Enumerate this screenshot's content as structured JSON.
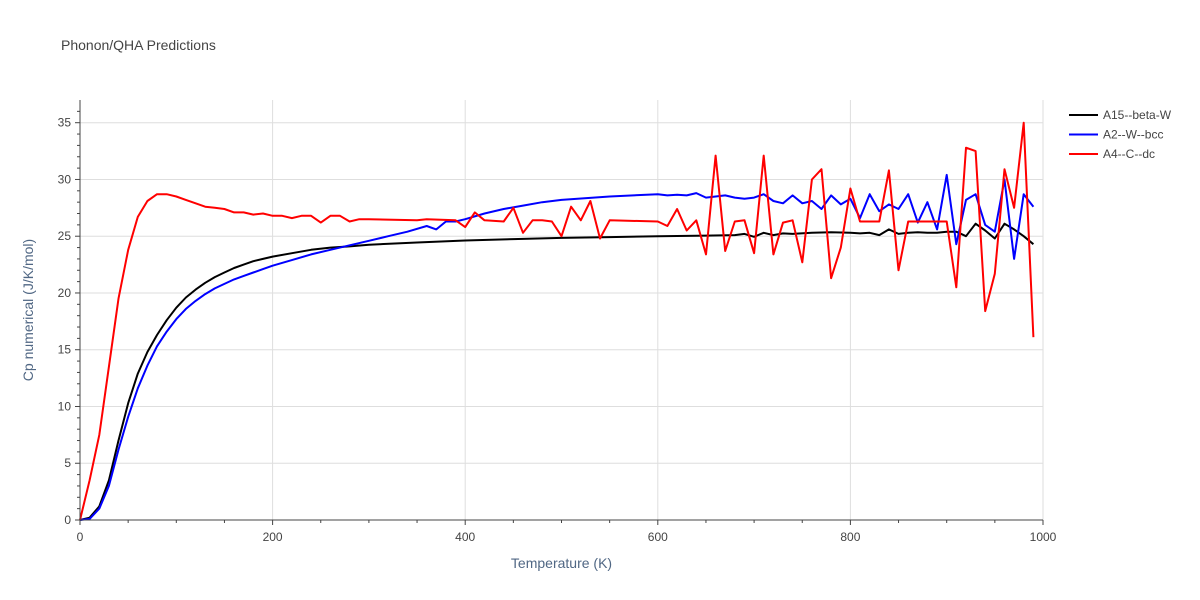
{
  "chart_data": {
    "type": "line",
    "title": "Phonon/QHA Predictions",
    "xlabel": "Temperature (K)",
    "ylabel": "Cp numerical (J/K/mol)",
    "xlim": [
      0,
      1000
    ],
    "ylim": [
      0,
      37
    ],
    "xticks": [
      0,
      200,
      400,
      600,
      800,
      1000
    ],
    "xtick_labels": [
      "0",
      "200",
      "400",
      "600",
      "800",
      "1000"
    ],
    "yticks": [
      0,
      5,
      10,
      15,
      20,
      25,
      30,
      35
    ],
    "ytick_labels": [
      "0",
      "5",
      "10",
      "15",
      "20",
      "25",
      "30",
      "35"
    ],
    "grid": true,
    "legend_position": "top-right",
    "series": [
      {
        "name": "A15--beta-W",
        "color": "#000000",
        "x": [
          0,
          10,
          20,
          30,
          40,
          50,
          60,
          70,
          80,
          90,
          100,
          110,
          120,
          130,
          140,
          150,
          160,
          170,
          180,
          190,
          200,
          220,
          240,
          260,
          280,
          300,
          350,
          400,
          450,
          500,
          550,
          600,
          650,
          680,
          690,
          700,
          710,
          720,
          730,
          740,
          760,
          780,
          800,
          810,
          820,
          830,
          840,
          850,
          860,
          870,
          880,
          890,
          900,
          910,
          920,
          930,
          940,
          950,
          960,
          970,
          980,
          990
        ],
        "y": [
          0,
          0.2,
          1.2,
          3.5,
          7.0,
          10.3,
          12.9,
          14.8,
          16.3,
          17.6,
          18.7,
          19.6,
          20.3,
          20.9,
          21.4,
          21.8,
          22.2,
          22.5,
          22.8,
          23.0,
          23.2,
          23.5,
          23.8,
          24.0,
          24.1,
          24.25,
          24.45,
          24.62,
          24.75,
          24.85,
          24.92,
          25.0,
          25.05,
          25.1,
          25.2,
          24.95,
          25.3,
          25.1,
          25.25,
          25.2,
          25.3,
          25.35,
          25.3,
          25.25,
          25.3,
          25.1,
          25.6,
          25.2,
          25.3,
          25.35,
          25.3,
          25.3,
          25.4,
          25.4,
          25.0,
          26.1,
          25.5,
          24.8,
          26.1,
          25.6,
          25.0,
          24.3
        ]
      },
      {
        "name": "A2--W--bcc",
        "color": "#0000ff",
        "x": [
          0,
          10,
          20,
          30,
          40,
          50,
          60,
          70,
          80,
          90,
          100,
          110,
          120,
          130,
          140,
          150,
          160,
          170,
          180,
          190,
          200,
          220,
          240,
          260,
          280,
          300,
          320,
          340,
          360,
          370,
          380,
          390,
          400,
          420,
          440,
          460,
          480,
          500,
          550,
          600,
          610,
          620,
          630,
          640,
          650,
          660,
          670,
          680,
          690,
          700,
          710,
          720,
          730,
          740,
          750,
          760,
          770,
          780,
          790,
          800,
          810,
          820,
          830,
          840,
          850,
          860,
          870,
          880,
          890,
          900,
          910,
          920,
          930,
          940,
          950,
          960,
          970,
          980,
          990
        ],
        "y": [
          0,
          0.1,
          1.0,
          3.0,
          6.2,
          9.1,
          11.6,
          13.6,
          15.3,
          16.6,
          17.7,
          18.6,
          19.3,
          19.9,
          20.4,
          20.8,
          21.2,
          21.5,
          21.8,
          22.1,
          22.4,
          22.9,
          23.4,
          23.8,
          24.2,
          24.6,
          25.0,
          25.4,
          25.9,
          25.6,
          26.3,
          26.3,
          26.5,
          27.0,
          27.4,
          27.7,
          28.0,
          28.2,
          28.5,
          28.7,
          28.6,
          28.65,
          28.6,
          28.8,
          28.4,
          28.5,
          28.6,
          28.4,
          28.3,
          28.4,
          28.7,
          28.1,
          27.9,
          28.6,
          27.9,
          28.1,
          27.4,
          28.6,
          27.8,
          28.3,
          26.6,
          28.7,
          27.2,
          27.8,
          27.4,
          28.7,
          26.2,
          28.0,
          25.6,
          30.4,
          24.3,
          28.2,
          28.7,
          26.0,
          25.4,
          30.0,
          23.0,
          28.7,
          27.6
        ]
      },
      {
        "name": "A4--C--dc",
        "color": "#ff0000",
        "x": [
          0,
          10,
          20,
          30,
          40,
          50,
          60,
          70,
          80,
          90,
          100,
          110,
          120,
          130,
          140,
          150,
          160,
          170,
          180,
          190,
          200,
          210,
          220,
          230,
          240,
          250,
          260,
          270,
          280,
          290,
          300,
          350,
          360,
          390,
          400,
          410,
          420,
          440,
          450,
          460,
          470,
          480,
          490,
          500,
          510,
          520,
          530,
          540,
          550,
          600,
          610,
          620,
          630,
          640,
          650,
          660,
          670,
          680,
          690,
          700,
          710,
          720,
          730,
          740,
          750,
          760,
          770,
          780,
          790,
          800,
          810,
          830,
          840,
          850,
          860,
          870,
          880,
          890,
          900,
          910,
          920,
          930,
          940,
          950,
          960,
          970,
          980,
          990
        ],
        "y": [
          0,
          3.5,
          7.5,
          13.5,
          19.5,
          23.8,
          26.7,
          28.1,
          28.7,
          28.7,
          28.5,
          28.2,
          27.9,
          27.6,
          27.5,
          27.4,
          27.1,
          27.1,
          26.9,
          27.0,
          26.8,
          26.8,
          26.6,
          26.8,
          26.8,
          26.2,
          26.8,
          26.8,
          26.3,
          26.5,
          26.5,
          26.4,
          26.5,
          26.4,
          25.8,
          27.1,
          26.4,
          26.3,
          27.5,
          25.3,
          26.4,
          26.4,
          26.3,
          25.0,
          27.6,
          26.4,
          28.1,
          24.8,
          26.4,
          26.3,
          25.9,
          27.4,
          25.5,
          26.4,
          23.4,
          32.1,
          23.7,
          26.3,
          26.4,
          23.5,
          32.1,
          23.4,
          26.2,
          26.4,
          22.7,
          30.0,
          30.9,
          21.3,
          24.0,
          29.2,
          26.3,
          26.3,
          30.8,
          22.0,
          26.3,
          26.3,
          26.3,
          26.3,
          26.3,
          20.5,
          32.8,
          32.5,
          18.4,
          21.7,
          30.9,
          27.5,
          35.0,
          16.1
        ]
      }
    ]
  }
}
